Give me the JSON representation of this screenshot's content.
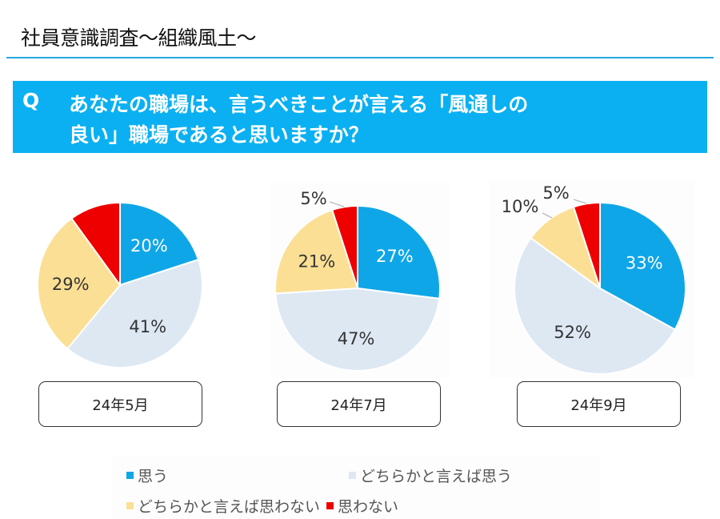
{
  "header": {
    "title": "社員意識調査～組織風土～"
  },
  "question": {
    "prefix": "Q",
    "line1": "あなたの職場は、言うべきことが言える「風通しの",
    "line2": "良い」職場であると思いますか？"
  },
  "colors": {
    "header_rule": "#29a9e0",
    "question_bg": "#0bb0f2"
  },
  "chart_data": {
    "type": "pie",
    "title": "あなたの職場は、言うべきことが言える「風通しの良い」職場であると思いますか？",
    "legend_position": "bottom",
    "categories": [
      "思う",
      "どちらかと言えば思う",
      "どちらかと言えば思わない",
      "思わない"
    ],
    "category_colors": [
      "#0fa6e8",
      "#dde8f3",
      "#fbdf94",
      "#ee0000"
    ],
    "label_colors": [
      "#ffffff",
      "#333333",
      "#333333",
      "#333333"
    ],
    "start_angle_deg": 0,
    "direction": "clockwise",
    "charts": [
      {
        "period": "24年5月",
        "values": [
          20,
          41,
          29,
          10
        ],
        "labels": [
          "20%",
          "41%",
          "29%",
          ""
        ]
      },
      {
        "period": "24年7月",
        "values": [
          27,
          47,
          21,
          5
        ],
        "labels": [
          "27%",
          "47%",
          "21%",
          "5%"
        ]
      },
      {
        "period": "24年9月",
        "values": [
          33,
          52,
          10,
          5
        ],
        "labels": [
          "33%",
          "52%",
          "10%",
          "5%"
        ]
      }
    ]
  },
  "legend": {
    "items": [
      {
        "label": "思う",
        "color": "#0fa6e8"
      },
      {
        "label": "どちらかと言えば思う",
        "color": "#dde8f3"
      },
      {
        "label": "どちらかと言えば思わない",
        "color": "#fbdf94"
      },
      {
        "label": "思わない",
        "color": "#ee0000"
      }
    ]
  }
}
